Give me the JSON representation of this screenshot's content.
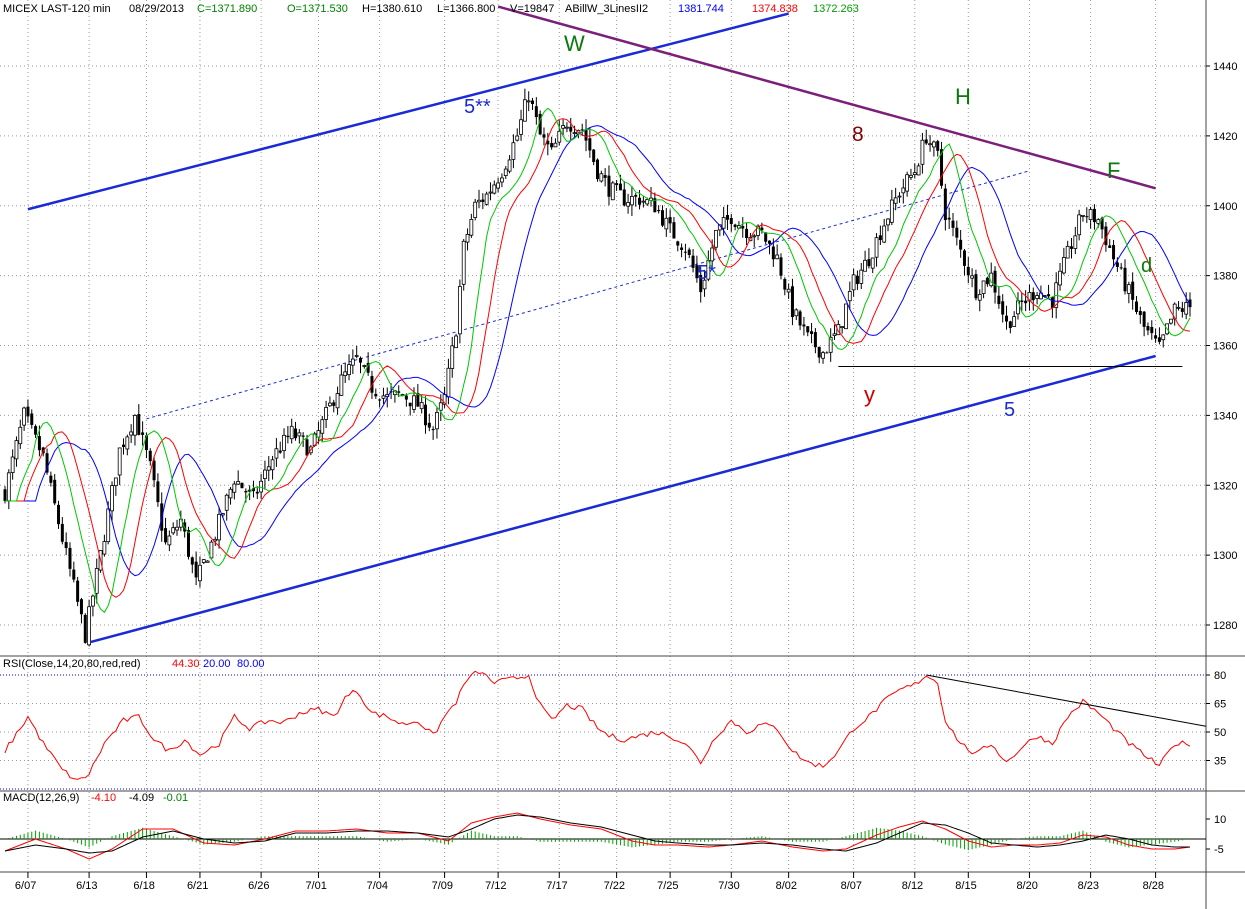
{
  "header": {
    "symbol": "MICEX LAST-120 min",
    "date": "08/29/2013",
    "close": "C=1371.890",
    "open": "O=1371.530",
    "high": "H=1380.610",
    "low": "L=1366.800",
    "volume": "V=19847",
    "indicator_name": "ABillW_3LinesII2",
    "line1": "1381.744",
    "line2": "1374.838",
    "line3": "1372.263"
  },
  "rsi_header": {
    "label": "RSI(Close,14,20,80,red,red)",
    "value": "44.30",
    "lower": "20.00",
    "upper": "80.00"
  },
  "macd_header": {
    "label": "MACD(12,26,9)",
    "macd": "-4.10",
    "signal": "-4.09",
    "hist": "-0.01"
  },
  "colors": {
    "background": "#ffffff",
    "grid": "#9a9a9a",
    "bars": "#000000",
    "line_blue": "#0000ff",
    "line_red": "#ff0000",
    "line_green": "#00c800",
    "trend_blue": "#1a2bd6",
    "trend_purple": "#7b1f7b",
    "label_green": "#0a7a0a",
    "label_red": "#cc0000",
    "label_darkred": "#800000",
    "label_blue": "#1a2bd6"
  },
  "annotations": {
    "W": "W",
    "H": "H",
    "F": "F",
    "d": "d",
    "y": "y",
    "n8": "8",
    "n5": "5",
    "n5s": "5*",
    "n5ss": "5**"
  },
  "chart_data": [
    {
      "type": "candlestick",
      "title": "MICEX LAST-120 min",
      "ylim": [
        1266,
        1451
      ],
      "y_ticks": [
        "1280",
        "1300",
        "1320",
        "1340",
        "1360",
        "1380",
        "1400",
        "1420",
        "1440"
      ],
      "x_ticks": [
        "6/07",
        "6/13",
        "6/18",
        "6/21",
        "6/26",
        "7/01",
        "7/04",
        "7/09",
        "7/12",
        "7/17",
        "7/22",
        "7/25",
        "7/30",
        "8/02",
        "8/07",
        "8/12",
        "8/15",
        "8/20",
        "8/23",
        "8/28"
      ],
      "close_anchors": [
        [
          0,
          1318
        ],
        [
          5,
          1340
        ],
        [
          10,
          1328
        ],
        [
          16,
          1300
        ],
        [
          21,
          1277
        ],
        [
          25,
          1300
        ],
        [
          30,
          1330
        ],
        [
          34,
          1340
        ],
        [
          38,
          1325
        ],
        [
          42,
          1303
        ],
        [
          46,
          1310
        ],
        [
          50,
          1292
        ],
        [
          55,
          1306
        ],
        [
          60,
          1322
        ],
        [
          65,
          1316
        ],
        [
          70,
          1328
        ],
        [
          75,
          1335
        ],
        [
          80,
          1330
        ],
        [
          84,
          1340
        ],
        [
          88,
          1350
        ],
        [
          92,
          1356
        ],
        [
          96,
          1348
        ],
        [
          100,
          1345
        ],
        [
          104,
          1346
        ],
        [
          108,
          1343
        ],
        [
          112,
          1336
        ],
        [
          115,
          1345
        ],
        [
          118,
          1365
        ],
        [
          120,
          1388
        ],
        [
          123,
          1400
        ],
        [
          126,
          1403
        ],
        [
          130,
          1410
        ],
        [
          134,
          1420
        ],
        [
          137,
          1432
        ],
        [
          140,
          1420
        ],
        [
          143,
          1415
        ],
        [
          147,
          1424
        ],
        [
          151,
          1422
        ],
        [
          155,
          1410
        ],
        [
          158,
          1405
        ],
        [
          162,
          1402
        ],
        [
          166,
          1402
        ],
        [
          170,
          1400
        ],
        [
          174,
          1393
        ],
        [
          178,
          1388
        ],
        [
          182,
          1376
        ],
        [
          186,
          1392
        ],
        [
          190,
          1397
        ],
        [
          194,
          1393
        ],
        [
          198,
          1392
        ],
        [
          202,
          1385
        ],
        [
          206,
          1370
        ],
        [
          210,
          1362
        ],
        [
          214,
          1358
        ],
        [
          218,
          1364
        ],
        [
          222,
          1378
        ],
        [
          226,
          1385
        ],
        [
          230,
          1395
        ],
        [
          234,
          1404
        ],
        [
          238,
          1410
        ],
        [
          241,
          1420
        ],
        [
          244,
          1414
        ],
        [
          246,
          1398
        ],
        [
          250,
          1387
        ],
        [
          254,
          1376
        ],
        [
          258,
          1380
        ],
        [
          262,
          1366
        ],
        [
          266,
          1372
        ],
        [
          270,
          1376
        ],
        [
          274,
          1373
        ],
        [
          278,
          1386
        ],
        [
          282,
          1398
        ],
        [
          286,
          1396
        ],
        [
          290,
          1385
        ],
        [
          294,
          1375
        ],
        [
          298,
          1365
        ],
        [
          302,
          1359
        ],
        [
          306,
          1370
        ],
        [
          310,
          1371
        ]
      ],
      "moving_averages": [
        {
          "name": "1381.744",
          "color": "#0000ff",
          "value": 1381.744
        },
        {
          "name": "1374.838",
          "color": "#ff0000",
          "value": 1374.838
        },
        {
          "name": "1372.263",
          "color": "#00c800",
          "value": 1372.263
        }
      ],
      "trendlines": [
        {
          "label": "5",
          "from": [
            "6/13",
            1275
          ],
          "to": [
            "8/28",
            1357
          ]
        },
        {
          "label": "5**",
          "from": [
            "6/07",
            1399
          ],
          "to": [
            "8/02",
            1455
          ]
        },
        {
          "label": "5*",
          "from": [
            "6/18",
            1339
          ],
          "to": [
            "8/20",
            1410
          ]
        },
        {
          "label": "8",
          "from": [
            "7/12",
            1457
          ],
          "to": [
            "8/28",
            1405
          ]
        }
      ],
      "horizontal_levels": [
        1354
      ]
    },
    {
      "type": "line",
      "title": "RSI(Close,14,20,80,red,red)",
      "ylim": [
        24,
        86
      ],
      "y_ticks": [
        "35",
        "50",
        "65",
        "80"
      ],
      "levels": [
        20,
        80
      ],
      "last_value": 44.3,
      "anchors": [
        [
          0,
          40
        ],
        [
          6,
          58
        ],
        [
          10,
          44
        ],
        [
          15,
          30
        ],
        [
          19,
          24
        ],
        [
          22,
          28
        ],
        [
          26,
          44
        ],
        [
          31,
          56
        ],
        [
          35,
          58
        ],
        [
          39,
          46
        ],
        [
          43,
          40
        ],
        [
          47,
          46
        ],
        [
          51,
          38
        ],
        [
          56,
          44
        ],
        [
          60,
          58
        ],
        [
          64,
          52
        ],
        [
          69,
          56
        ],
        [
          73,
          55
        ],
        [
          77,
          60
        ],
        [
          82,
          62
        ],
        [
          86,
          58
        ],
        [
          89,
          68
        ],
        [
          92,
          72
        ],
        [
          96,
          60
        ],
        [
          100,
          58
        ],
        [
          104,
          54
        ],
        [
          108,
          56
        ],
        [
          112,
          48
        ],
        [
          115,
          58
        ],
        [
          118,
          66
        ],
        [
          121,
          78
        ],
        [
          124,
          82
        ],
        [
          128,
          76
        ],
        [
          133,
          78
        ],
        [
          137,
          80
        ],
        [
          140,
          64
        ],
        [
          143,
          56
        ],
        [
          147,
          64
        ],
        [
          151,
          62
        ],
        [
          155,
          52
        ],
        [
          158,
          48
        ],
        [
          162,
          46
        ],
        [
          166,
          48
        ],
        [
          170,
          50
        ],
        [
          174,
          48
        ],
        [
          178,
          44
        ],
        [
          182,
          34
        ],
        [
          186,
          48
        ],
        [
          190,
          56
        ],
        [
          194,
          50
        ],
        [
          198,
          54
        ],
        [
          202,
          52
        ],
        [
          206,
          40
        ],
        [
          210,
          34
        ],
        [
          214,
          32
        ],
        [
          218,
          40
        ],
        [
          222,
          52
        ],
        [
          226,
          58
        ],
        [
          230,
          66
        ],
        [
          234,
          72
        ],
        [
          238,
          75
        ],
        [
          241,
          80
        ],
        [
          244,
          76
        ],
        [
          246,
          56
        ],
        [
          250,
          44
        ],
        [
          254,
          38
        ],
        [
          258,
          44
        ],
        [
          262,
          34
        ],
        [
          266,
          42
        ],
        [
          270,
          48
        ],
        [
          274,
          44
        ],
        [
          278,
          58
        ],
        [
          282,
          66
        ],
        [
          286,
          60
        ],
        [
          290,
          52
        ],
        [
          294,
          44
        ],
        [
          298,
          38
        ],
        [
          302,
          32
        ],
        [
          306,
          44
        ],
        [
          310,
          44
        ]
      ],
      "trendline": {
        "from": [
          241,
          80
        ],
        "to": [
          318,
          53
        ]
      }
    },
    {
      "type": "line",
      "title": "MACD(12,26,9)",
      "ylim": [
        -12,
        18
      ],
      "y_ticks": [
        "-5",
        "10"
      ],
      "series": [
        {
          "name": "-4.10",
          "color": "#ff0000",
          "anchors": [
            [
              0,
              -6
            ],
            [
              8,
              0
            ],
            [
              16,
              -5
            ],
            [
              22,
              -10
            ],
            [
              28,
              -5
            ],
            [
              36,
              5
            ],
            [
              44,
              5
            ],
            [
              52,
              -2
            ],
            [
              60,
              -3
            ],
            [
              68,
              0
            ],
            [
              76,
              4
            ],
            [
              84,
              4
            ],
            [
              92,
              5
            ],
            [
              100,
              3
            ],
            [
              108,
              3
            ],
            [
              116,
              -1
            ],
            [
              122,
              8
            ],
            [
              128,
              11
            ],
            [
              134,
              13
            ],
            [
              140,
              10
            ],
            [
              148,
              7
            ],
            [
              156,
              5
            ],
            [
              164,
              -1
            ],
            [
              170,
              -3
            ],
            [
              176,
              -3
            ],
            [
              184,
              -4
            ],
            [
              190,
              -3
            ],
            [
              198,
              -1
            ],
            [
              206,
              -4
            ],
            [
              214,
              -6
            ],
            [
              220,
              -5
            ],
            [
              228,
              2
            ],
            [
              234,
              6
            ],
            [
              240,
              9
            ],
            [
              246,
              5
            ],
            [
              252,
              -1
            ],
            [
              258,
              -4
            ],
            [
              264,
              -3
            ],
            [
              270,
              -3
            ],
            [
              276,
              -2
            ],
            [
              282,
              2
            ],
            [
              288,
              1
            ],
            [
              294,
              -3
            ],
            [
              300,
              -5
            ],
            [
              306,
              -5
            ],
            [
              310,
              -4
            ]
          ]
        },
        {
          "name": "-4.09",
          "color": "#000000",
          "anchors": [
            [
              0,
              -6
            ],
            [
              8,
              -3
            ],
            [
              16,
              -5
            ],
            [
              22,
              -7
            ],
            [
              28,
              -6
            ],
            [
              36,
              1
            ],
            [
              44,
              4
            ],
            [
              52,
              0
            ],
            [
              60,
              -2
            ],
            [
              68,
              -1
            ],
            [
              76,
              3
            ],
            [
              84,
              3
            ],
            [
              92,
              4
            ],
            [
              100,
              4
            ],
            [
              108,
              3
            ],
            [
              116,
              1
            ],
            [
              122,
              5
            ],
            [
              128,
              10
            ],
            [
              134,
              12
            ],
            [
              140,
              11
            ],
            [
              148,
              8
            ],
            [
              156,
              6
            ],
            [
              164,
              2
            ],
            [
              170,
              -1
            ],
            [
              176,
              -2
            ],
            [
              184,
              -3
            ],
            [
              190,
              -3
            ],
            [
              198,
              -2
            ],
            [
              206,
              -3
            ],
            [
              214,
              -5
            ],
            [
              220,
              -6
            ],
            [
              228,
              -2
            ],
            [
              234,
              3
            ],
            [
              240,
              8
            ],
            [
              246,
              7
            ],
            [
              252,
              3
            ],
            [
              258,
              -2
            ],
            [
              264,
              -3
            ],
            [
              270,
              -4
            ],
            [
              276,
              -3
            ],
            [
              282,
              -1
            ],
            [
              288,
              2
            ],
            [
              294,
              0
            ],
            [
              300,
              -3
            ],
            [
              306,
              -4
            ],
            [
              310,
              -4
            ]
          ]
        }
      ]
    }
  ]
}
